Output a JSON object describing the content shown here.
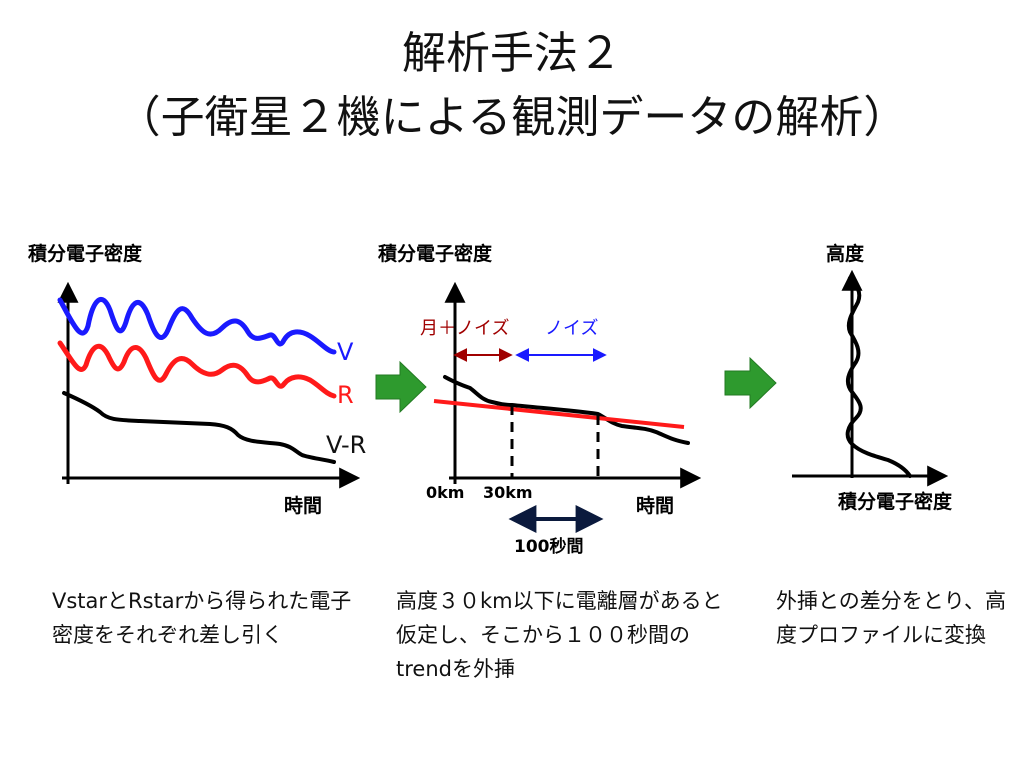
{
  "title": {
    "line1": "解析手法２",
    "line2": "（子衛星２機による観測データの解析）"
  },
  "panel1": {
    "ylabel": "積分電子密度",
    "xlabel": "時間",
    "curve_labels": {
      "v": "V",
      "r": "R",
      "vr": "V-R"
    },
    "colors": {
      "v": "#1a1aff",
      "r": "#ff1a1a",
      "vr": "#000000"
    }
  },
  "panel2": {
    "ylabel": "積分電子密度",
    "xlabel": "時間",
    "noise_labels": {
      "moon_noise": "月＋ノイズ",
      "noise": "ノイズ"
    },
    "tick_labels": {
      "zero": "0km",
      "thirty": "30km"
    },
    "interval_label": "100秒間",
    "colors": {
      "moon_noise": "#a00000",
      "noise": "#1a1aff",
      "trend": "#ff1a1a",
      "interval": "#0b1a3d"
    }
  },
  "panel3": {
    "ylabel": "高度",
    "xlabel": "積分電子密度"
  },
  "arrows": {
    "color": "#2e9a2e"
  },
  "captions": {
    "c1": "VstarとRstarから得られた電子密度をそれぞれ差し引く",
    "c2": "高度３０km以下に電離層があると仮定し、そこから１００秒間のtrendを外挿",
    "c3": "外挿との差分をとり、高度プロファイルに変換"
  }
}
